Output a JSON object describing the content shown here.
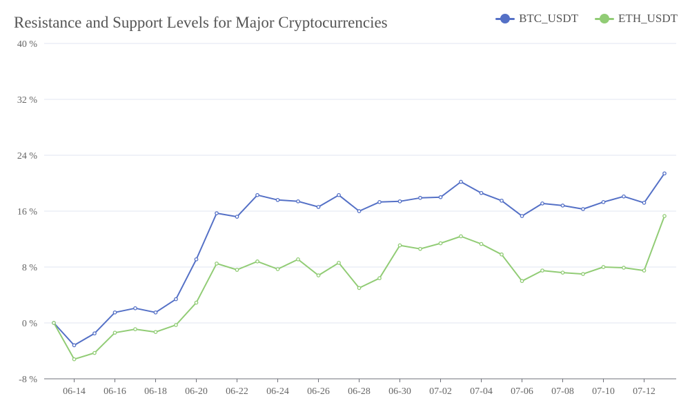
{
  "chart_data": {
    "type": "line",
    "title": "Resistance and Support Levels for Major Cryptocurrencies",
    "xlabel": "",
    "ylabel": "",
    "y_unit": "%",
    "ylim": [
      -8,
      40
    ],
    "y_ticks": [
      -8,
      0,
      8,
      16,
      24,
      32,
      40
    ],
    "y_tick_labels": [
      "-8 %",
      "0 %",
      "8 %",
      "16 %",
      "24 %",
      "32 %",
      "40 %"
    ],
    "x_tick_labels": [
      "06-14",
      "06-16",
      "06-18",
      "06-20",
      "06-22",
      "06-24",
      "06-26",
      "06-28",
      "06-30",
      "07-02",
      "07-04",
      "07-06",
      "07-08",
      "07-10",
      "07-12"
    ],
    "x": [
      "06-13",
      "06-14",
      "06-15",
      "06-16",
      "06-17",
      "06-18",
      "06-19",
      "06-20",
      "06-21",
      "06-22",
      "06-23",
      "06-24",
      "06-25",
      "06-26",
      "06-27",
      "06-28",
      "06-29",
      "06-30",
      "07-01",
      "07-02",
      "07-03",
      "07-04",
      "07-05",
      "07-06",
      "07-07",
      "07-08",
      "07-09",
      "07-10",
      "07-11",
      "07-12",
      "07-13"
    ],
    "grid": true,
    "legend_position": "top-right",
    "series": [
      {
        "name": "BTC_USDT",
        "color": "#5470c6",
        "values": [
          0,
          -3.2,
          -1.5,
          1.5,
          2.1,
          1.5,
          3.4,
          9.1,
          15.7,
          15.2,
          18.3,
          17.6,
          17.4,
          16.6,
          18.3,
          16.0,
          17.3,
          17.4,
          17.9,
          18.0,
          20.2,
          18.6,
          17.5,
          15.3,
          17.1,
          16.8,
          16.3,
          17.3,
          18.1,
          17.2,
          21.4
        ]
      },
      {
        "name": "ETH_USDT",
        "color": "#91cc75",
        "values": [
          0,
          -5.2,
          -4.3,
          -1.4,
          -0.9,
          -1.3,
          -0.3,
          2.9,
          8.5,
          7.6,
          8.8,
          7.7,
          9.1,
          6.8,
          8.6,
          5.0,
          6.4,
          11.1,
          10.6,
          11.4,
          12.4,
          11.3,
          9.8,
          6.0,
          7.5,
          7.2,
          7.0,
          8.0,
          7.9,
          7.5,
          15.3
        ]
      }
    ]
  }
}
